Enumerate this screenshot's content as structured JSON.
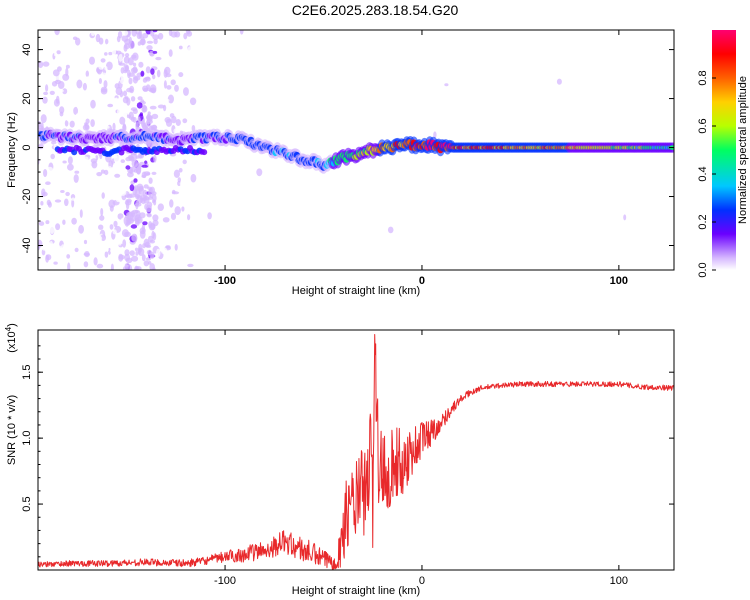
{
  "title": "C2E6.2025.283.18.54.G20",
  "chart_data": [
    {
      "type": "heatmap",
      "name": "spectrogram",
      "xlabel": "Height of straight line (km)",
      "ylabel": "Frequency (Hz)",
      "xlim": [
        -195,
        128
      ],
      "ylim": [
        -50,
        48
      ],
      "x_ticks": [
        -100,
        0,
        100
      ],
      "x_tick_labels": [
        "-100",
        "0",
        "100"
      ],
      "y_ticks": [
        -40,
        -20,
        0,
        20,
        40
      ],
      "y_tick_labels": [
        "-40",
        "-20",
        "0",
        "20",
        "40"
      ],
      "colorbar": {
        "label": "Normalized spectral amplitude",
        "range": [
          0,
          1
        ],
        "ticks": [
          0.0,
          0.2,
          0.4,
          0.6,
          0.8
        ],
        "tick_labels": [
          "0.0",
          "0.2",
          "0.4",
          "0.6",
          "0.8"
        ],
        "colors": [
          "#ffffff",
          "#d6b8ff",
          "#6a00ff",
          "#0030ff",
          "#00c8ff",
          "#00ff60",
          "#b8ff00",
          "#ffd000",
          "#ff6000",
          "#ff0000",
          "#ff0070"
        ]
      },
      "ridge": {
        "x": [
          -193,
          -175,
          -165,
          -150,
          -140,
          -125,
          -110,
          -100,
          -90,
          -80,
          -70,
          -60,
          -50,
          -45,
          -40,
          -35,
          -30,
          -25,
          -20,
          -15,
          -10,
          -5,
          0,
          5,
          10,
          15,
          20,
          40,
          60,
          80,
          100,
          128
        ],
        "y": [
          5,
          4,
          4,
          4,
          5,
          3,
          4,
          4,
          3,
          0,
          -2,
          -5,
          -7,
          -6,
          -4,
          -3,
          -2,
          -1,
          0,
          0,
          1,
          1,
          1,
          1,
          0,
          0,
          0,
          0,
          0,
          0,
          0,
          0
        ],
        "amplitude": [
          0.25,
          0.25,
          0.2,
          0.25,
          0.3,
          0.2,
          0.3,
          0.25,
          0.3,
          0.3,
          0.35,
          0.3,
          0.35,
          0.45,
          0.5,
          0.55,
          0.6,
          0.65,
          0.75,
          0.8,
          0.85,
          0.85,
          0.9,
          0.95,
          0.95,
          0.9,
          0.85,
          0.8,
          0.75,
          0.7,
          0.55,
          0.45
        ]
      },
      "secondary_ridge": {
        "x": [
          -185,
          -170,
          -160,
          -150,
          -140,
          -130,
          -120,
          -110
        ],
        "y": [
          -1,
          -1,
          -2,
          -1,
          -1,
          -1,
          -1,
          -1
        ],
        "amplitude": [
          0.25,
          0.2,
          0.25,
          0.2,
          0.25,
          0.2,
          0.2,
          0.25
        ]
      }
    },
    {
      "type": "line",
      "name": "snr",
      "xlabel": "Height of straight line (km)",
      "ylabel": "SNR (10 * v/v)",
      "exponent_label": "(x10",
      "exponent_power": "4",
      "exponent_close": ")",
      "xlim": [
        -195,
        128
      ],
      "ylim": [
        0,
        1.82
      ],
      "x_ticks": [
        -100,
        0,
        100
      ],
      "x_tick_labels": [
        "-100",
        "0",
        "100"
      ],
      "y_ticks": [
        0.5,
        1.0,
        1.5
      ],
      "y_tick_labels": [
        "0.5",
        "1.0",
        "1.5"
      ],
      "color": "#e8292b",
      "series": {
        "x": [
          -195,
          -180,
          -160,
          -140,
          -120,
          -110,
          -100,
          -90,
          -80,
          -75,
          -70,
          -65,
          -60,
          -55,
          -50,
          -45,
          -42,
          -40,
          -38,
          -35,
          -32,
          -30,
          -28,
          -26,
          -25,
          -24,
          -22,
          -20,
          -18,
          -15,
          -12,
          -10,
          -8,
          -5,
          -2,
          0,
          5,
          10,
          15,
          20,
          25,
          30,
          40,
          50,
          60,
          80,
          100,
          110,
          128
        ],
        "y": [
          0.04,
          0.05,
          0.05,
          0.06,
          0.05,
          0.07,
          0.1,
          0.12,
          0.15,
          0.18,
          0.22,
          0.18,
          0.15,
          0.12,
          0.08,
          0.06,
          0.12,
          0.3,
          0.45,
          0.5,
          0.55,
          0.6,
          0.55,
          0.95,
          0.5,
          1.85,
          0.7,
          0.8,
          0.75,
          0.8,
          0.82,
          0.78,
          0.85,
          0.9,
          0.95,
          1.0,
          1.05,
          1.12,
          1.22,
          1.3,
          1.35,
          1.38,
          1.4,
          1.41,
          1.41,
          1.41,
          1.41,
          1.39,
          1.38
        ]
      },
      "noise_amplitude": {
        "x": [
          -195,
          -110,
          -90,
          -60,
          -45,
          -40,
          -30,
          -20,
          -10,
          0,
          10,
          20,
          30,
          128
        ],
        "y": [
          0.02,
          0.03,
          0.06,
          0.1,
          0.06,
          0.25,
          0.35,
          0.35,
          0.25,
          0.15,
          0.06,
          0.03,
          0.02,
          0.02
        ]
      }
    }
  ]
}
